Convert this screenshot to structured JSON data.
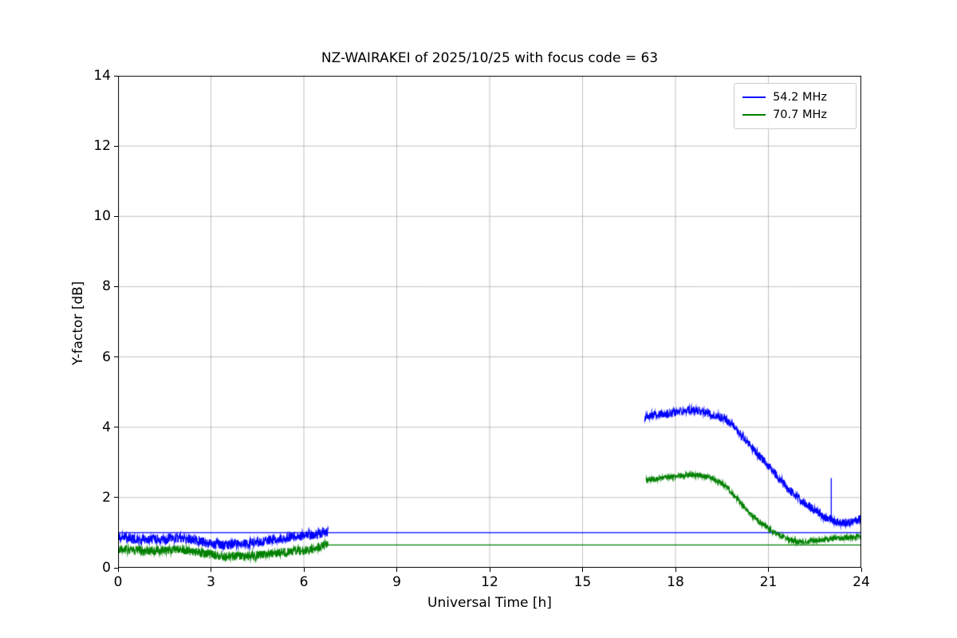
{
  "figure": {
    "background": "#ffffff"
  },
  "chart_data": {
    "type": "line",
    "title": "NZ-WAIRAKEI of 2025/10/25 with focus code = 63",
    "xlabel": "Universal Time [h]",
    "ylabel": "Y-factor [dB]",
    "xlim": [
      0,
      24
    ],
    "ylim": [
      0,
      14
    ],
    "xticks": [
      0,
      3,
      6,
      9,
      12,
      15,
      18,
      21,
      24
    ],
    "yticks": [
      0,
      2,
      4,
      6,
      8,
      10,
      12,
      14
    ],
    "grid": true,
    "grid_color": "#b0b0b0",
    "legend_position": "upper right",
    "series": [
      {
        "name": "54.2 MHz",
        "color": "#0000ff",
        "segments": [
          {
            "type": "hline",
            "y": 1.0,
            "x_start": 0,
            "x_end": 24
          },
          {
            "type": "noisy",
            "x_start": 0,
            "x_end": 6.8,
            "noise": 0.14,
            "keypoints": [
              [
                0,
                0.88
              ],
              [
                0.5,
                0.82
              ],
              [
                1,
                0.8
              ],
              [
                1.5,
                0.82
              ],
              [
                2,
                0.85
              ],
              [
                2.5,
                0.8
              ],
              [
                3,
                0.68
              ],
              [
                3.5,
                0.65
              ],
              [
                4,
                0.68
              ],
              [
                4.5,
                0.72
              ],
              [
                5,
                0.8
              ],
              [
                5.5,
                0.85
              ],
              [
                6,
                0.92
              ],
              [
                6.4,
                0.95
              ],
              [
                6.6,
                1.0
              ],
              [
                6.8,
                1.02
              ]
            ]
          },
          {
            "type": "noisy",
            "x_start": 17,
            "x_end": 24,
            "noise": 0.12,
            "keypoints": [
              [
                17,
                4.3
              ],
              [
                17.5,
                4.38
              ],
              [
                18,
                4.42
              ],
              [
                18.4,
                4.5
              ],
              [
                18.8,
                4.45
              ],
              [
                19.2,
                4.35
              ],
              [
                19.6,
                4.25
              ],
              [
                20,
                3.9
              ],
              [
                20.4,
                3.5
              ],
              [
                20.8,
                3.1
              ],
              [
                21.2,
                2.7
              ],
              [
                21.6,
                2.3
              ],
              [
                22,
                1.95
              ],
              [
                22.4,
                1.7
              ],
              [
                22.8,
                1.45
              ],
              [
                23.2,
                1.3
              ],
              [
                23.6,
                1.28
              ],
              [
                24,
                1.4
              ]
            ]
          },
          {
            "type": "vspike",
            "x": 23.03,
            "y_from": 1.3,
            "y_to": 2.55
          }
        ]
      },
      {
        "name": "70.7 MHz",
        "color": "#008000",
        "segments": [
          {
            "type": "hline",
            "y": 0.65,
            "x_start": 6.8,
            "x_end": 24
          },
          {
            "type": "noisy",
            "x_start": 0,
            "x_end": 6.8,
            "noise": 0.13,
            "keypoints": [
              [
                0,
                0.55
              ],
              [
                0.5,
                0.5
              ],
              [
                1,
                0.48
              ],
              [
                1.5,
                0.5
              ],
              [
                2,
                0.52
              ],
              [
                2.5,
                0.45
              ],
              [
                3,
                0.38
              ],
              [
                3.5,
                0.33
              ],
              [
                4,
                0.32
              ],
              [
                4.5,
                0.35
              ],
              [
                5,
                0.4
              ],
              [
                5.5,
                0.45
              ],
              [
                6,
                0.5
              ],
              [
                6.4,
                0.55
              ],
              [
                6.6,
                0.65
              ],
              [
                6.8,
                0.7
              ]
            ]
          },
          {
            "type": "noisy",
            "x_start": 17.05,
            "x_end": 24,
            "noise": 0.07,
            "keypoints": [
              [
                17.05,
                2.5
              ],
              [
                17.5,
                2.55
              ],
              [
                18,
                2.6
              ],
              [
                18.5,
                2.65
              ],
              [
                19,
                2.6
              ],
              [
                19.3,
                2.5
              ],
              [
                19.6,
                2.35
              ],
              [
                20,
                1.95
              ],
              [
                20.4,
                1.55
              ],
              [
                20.8,
                1.25
              ],
              [
                21.2,
                1.0
              ],
              [
                21.6,
                0.82
              ],
              [
                22,
                0.72
              ],
              [
                22.5,
                0.78
              ],
              [
                23,
                0.82
              ],
              [
                23.5,
                0.85
              ],
              [
                24,
                0.9
              ]
            ]
          }
        ]
      }
    ]
  }
}
